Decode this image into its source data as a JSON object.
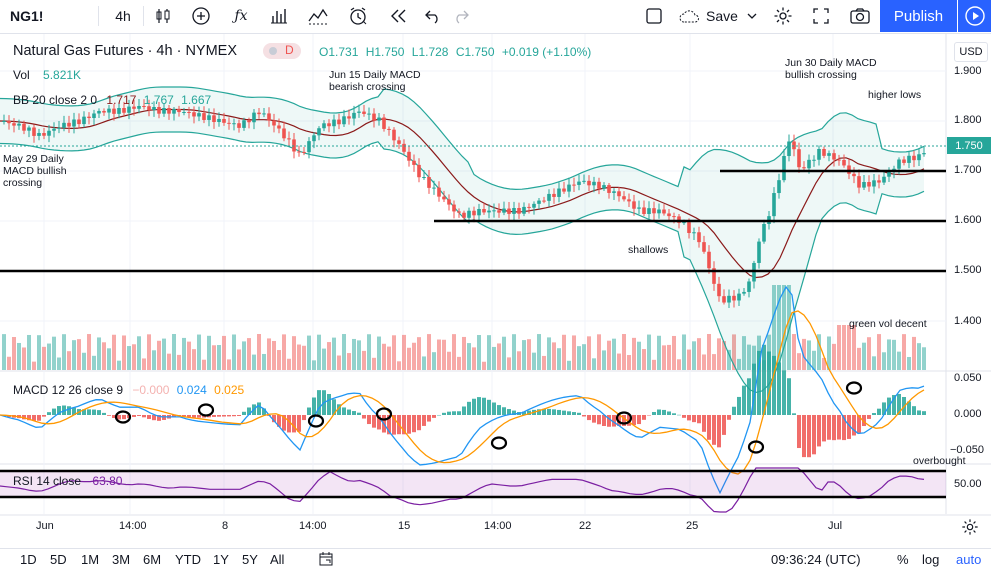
{
  "toolbar": {
    "symbol": "NG1!",
    "interval": "4h",
    "save_label": "Save",
    "publish_label": "Publish"
  },
  "legend": {
    "title": "Natural Gas Futures · 4h · NYMEX",
    "badge": "D",
    "open": "O1.731",
    "high": "H1.750",
    "low": "L1.728",
    "close": "C1.750",
    "change": "+0.019 (+1.10%)",
    "vol_label": "Vol",
    "vol_value": "5.821K",
    "bb_label": "BB 20 close 2 0",
    "bb_mid": "1.717",
    "bb_upper": "1.767",
    "bb_lower": "1.667",
    "macd_label": "MACD 12 26 close 9",
    "macd_hist": "−0.000",
    "macd_line": "0.024",
    "macd_signal": "0.025",
    "rsi_label": "RSI 14 close",
    "rsi_value": "63.80"
  },
  "annotations": {
    "may29": "May 29 Daily\nMACD bullish\ncrossing",
    "jun15": "Jun 15 Daily MACD\nbearish crossing",
    "jun30": "Jun 30 Daily MACD\nbullish crossing",
    "higher_lows": "higher lows",
    "shallows": "shallows",
    "green_vol": "green vol decent",
    "overbought": "overbought"
  },
  "price_axis": {
    "currency": "USD",
    "ticks": [
      "1.900",
      "1.800",
      "1.700",
      "1.600",
      "1.500",
      "1.400"
    ],
    "last_price": "1.750"
  },
  "macd_axis": {
    "ticks": [
      "0.050",
      "0.000",
      "−0.050"
    ]
  },
  "rsi_axis": {
    "ticks": [
      "50.00"
    ]
  },
  "time_axis": {
    "ticks": [
      "Jun",
      "14:00",
      "8",
      "14:00",
      "15",
      "14:00",
      "22",
      "25",
      "Jul"
    ]
  },
  "bottombar": {
    "ranges": [
      "1D",
      "5D",
      "1M",
      "3M",
      "6M",
      "YTD",
      "1Y",
      "5Y",
      "All"
    ],
    "clock": "09:36:24 (UTC)",
    "percent": "%",
    "log": "log",
    "auto": "auto"
  },
  "colors": {
    "up": "#26a69a",
    "down": "#ef5350",
    "bb": "#26a69a",
    "basis": "#8b1a1a",
    "macd": "#2196f3",
    "signal": "#ff9800",
    "rsi": "#7b1fa2",
    "accent": "#2962ff"
  },
  "chart_data": {
    "type": "candlestick",
    "price_range": [
      1.32,
      1.94
    ],
    "close_path": [
      [
        0,
        1.8
      ],
      [
        20,
        1.79
      ],
      [
        40,
        1.77
      ],
      [
        60,
        1.79
      ],
      [
        80,
        1.8
      ],
      [
        100,
        1.82
      ],
      [
        120,
        1.82
      ],
      [
        140,
        1.83
      ],
      [
        160,
        1.82
      ],
      [
        180,
        1.82
      ],
      [
        200,
        1.81
      ],
      [
        220,
        1.8
      ],
      [
        240,
        1.79
      ],
      [
        260,
        1.82
      ],
      [
        280,
        1.78
      ],
      [
        300,
        1.73
      ],
      [
        320,
        1.79
      ],
      [
        340,
        1.8
      ],
      [
        360,
        1.82
      ],
      [
        380,
        1.8
      ],
      [
        400,
        1.75
      ],
      [
        420,
        1.69
      ],
      [
        440,
        1.65
      ],
      [
        460,
        1.61
      ],
      [
        480,
        1.62
      ],
      [
        500,
        1.62
      ],
      [
        520,
        1.62
      ],
      [
        540,
        1.64
      ],
      [
        560,
        1.66
      ],
      [
        580,
        1.68
      ],
      [
        600,
        1.67
      ],
      [
        620,
        1.65
      ],
      [
        640,
        1.62
      ],
      [
        660,
        1.62
      ],
      [
        680,
        1.6
      ],
      [
        700,
        1.56
      ],
      [
        710,
        1.5
      ],
      [
        720,
        1.44
      ],
      [
        740,
        1.45
      ],
      [
        750,
        1.48
      ],
      [
        760,
        1.57
      ],
      [
        770,
        1.62
      ],
      [
        790,
        1.77
      ],
      [
        800,
        1.7
      ],
      [
        820,
        1.74
      ],
      [
        840,
        1.72
      ],
      [
        860,
        1.67
      ],
      [
        880,
        1.68
      ],
      [
        900,
        1.72
      ],
      [
        920,
        1.73
      ],
      [
        930,
        1.75
      ]
    ],
    "horizontal_levels": [
      1.7,
      1.6,
      1.5
    ]
  }
}
